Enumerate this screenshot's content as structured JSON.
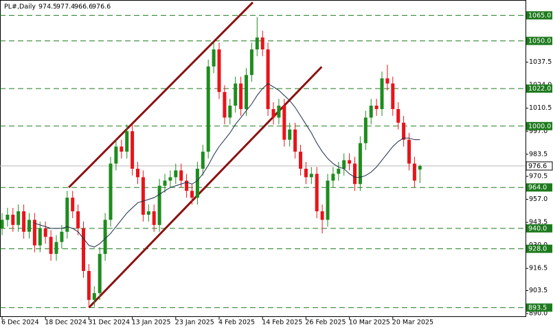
{
  "chart_data": {
    "type": "candlestick",
    "title": "PL#,Daily",
    "categories": [
      "6 Dec 2024",
      null,
      null,
      null,
      null,
      null,
      null,
      null,
      "18 Dec 2024",
      null,
      null,
      null,
      null,
      null,
      null,
      null,
      "31 Dec 2024",
      null,
      null,
      null,
      null,
      null,
      null,
      null,
      "13 Jan 2025",
      null,
      null,
      null,
      null,
      null,
      null,
      null,
      "23 Jan 2025",
      null,
      null,
      null,
      null,
      null,
      null,
      null,
      "4 Feb 2025",
      null,
      null,
      null,
      null,
      null,
      null,
      null,
      "14 Feb 2025",
      null,
      null,
      null,
      null,
      null,
      null,
      null,
      "26 Feb 2025",
      null,
      null,
      null,
      null,
      null,
      null,
      null,
      "10 Mar 2025",
      null,
      null,
      null,
      null,
      null,
      null,
      null,
      "20 Mar 2025",
      null,
      null,
      null,
      null,
      null
    ],
    "open": [
      940,
      945,
      948,
      942,
      950,
      938,
      945,
      930,
      940,
      935,
      925,
      932,
      938,
      958,
      950,
      940,
      915,
      898,
      902,
      925,
      945,
      978,
      988,
      985,
      997,
      975,
      970,
      948,
      950,
      942,
      965,
      968,
      970,
      974,
      968,
      962,
      958,
      975,
      985,
      1035,
      1045,
      1020,
      1005,
      1012,
      1025,
      1010,
      1030,
      1045,
      1052,
      1045,
      1010,
      1005,
      1012,
      992,
      998,
      985,
      975,
      970,
      972,
      950,
      945,
      968,
      972,
      975,
      980,
      978,
      966,
      990,
      1005,
      1012,
      1010,
      1028,
      1025,
      1010,
      1002,
      992,
      978,
      974.5
    ],
    "high": [
      949,
      952,
      952,
      954,
      954,
      949,
      949,
      944,
      944,
      939,
      936,
      942,
      962,
      962,
      954,
      944,
      919,
      906,
      929,
      949,
      982,
      992,
      992,
      1001,
      1001,
      979,
      974,
      954,
      954,
      969,
      972,
      974,
      978,
      978,
      972,
      966,
      979,
      989,
      1039,
      1049,
      1049,
      1024,
      1016,
      1029,
      1029,
      1034,
      1049,
      1064,
      1056,
      1049,
      1014,
      1016,
      1016,
      1002,
      1002,
      989,
      979,
      976,
      976,
      954,
      972,
      976,
      979,
      984,
      984,
      982,
      994,
      1009,
      1016,
      1016,
      1032,
      1036,
      1029,
      1014,
      1006,
      996,
      982,
      977.4
    ],
    "low": [
      936,
      941,
      938,
      938,
      934,
      934,
      926,
      926,
      931,
      921,
      921,
      928,
      934,
      946,
      936,
      911,
      893.5,
      894,
      898,
      921,
      941,
      974,
      981,
      981,
      971,
      966,
      944,
      944,
      938,
      938,
      961,
      964,
      966,
      964,
      958,
      954,
      954,
      971,
      981,
      1031,
      1016,
      1001,
      1001,
      1008,
      1006,
      1006,
      1026,
      1041,
      1041,
      1006,
      1001,
      1001,
      988,
      988,
      981,
      971,
      966,
      966,
      946,
      937,
      941,
      964,
      968,
      971,
      974,
      962,
      962,
      986,
      1001,
      1006,
      1006,
      1021,
      1006,
      998,
      988,
      974,
      964,
      966.6
    ],
    "close": [
      945,
      948,
      942,
      950,
      938,
      945,
      930,
      940,
      935,
      925,
      932,
      938,
      958,
      950,
      940,
      915,
      898,
      902,
      925,
      945,
      978,
      988,
      985,
      997,
      975,
      970,
      948,
      950,
      942,
      965,
      968,
      970,
      974,
      968,
      962,
      958,
      975,
      985,
      1035,
      1045,
      1020,
      1005,
      1012,
      1025,
      1010,
      1030,
      1045,
      1052,
      1045,
      1010,
      1005,
      1012,
      992,
      998,
      985,
      975,
      970,
      972,
      950,
      945,
      968,
      972,
      975,
      980,
      978,
      966,
      990,
      1005,
      1012,
      1010,
      1028,
      1025,
      1010,
      1002,
      992,
      978,
      968,
      976.6
    ],
    "up_color": "#1e8c1e",
    "down_color": "#e8141a",
    "ylim": [
      888,
      1074
    ],
    "yticks": [
      {
        "value": 890,
        "label": "890.0"
      },
      {
        "value": 903.5,
        "label": "903.5"
      },
      {
        "value": 916.5,
        "label": "916.5"
      },
      {
        "value": 930,
        "label": "930.0"
      },
      {
        "value": 943.5,
        "label": "943.5"
      },
      {
        "value": 957,
        "label": "957.0"
      },
      {
        "value": 970.5,
        "label": "970.5"
      },
      {
        "value": 983.5,
        "label": "983.5"
      },
      {
        "value": 997,
        "label": "997.0"
      },
      {
        "value": 1010.5,
        "label": "1010.5"
      },
      {
        "value": 1024,
        "label": "1024.0"
      },
      {
        "value": 1037.5,
        "label": "1037.5"
      }
    ],
    "overlay": {
      "color": "#1c2a4a",
      "values": [
        null,
        null,
        null,
        null,
        null,
        null,
        943,
        942,
        941,
        940,
        940,
        940,
        941,
        940,
        938,
        934,
        930,
        929,
        931,
        934,
        937,
        941,
        945,
        949,
        952,
        955,
        956,
        957,
        958,
        960,
        962,
        964,
        965,
        966,
        967,
        966,
        968,
        972,
        977,
        983,
        988,
        992,
        996,
        1001,
        1005,
        1009,
        1013,
        1018,
        1022,
        1025,
        1023,
        1021,
        1018,
        1015,
        1011,
        1006,
        1001,
        996,
        990,
        985,
        981,
        978,
        976,
        975,
        972,
        970,
        970,
        971,
        973,
        976,
        980,
        984,
        988,
        991,
        993,
        993,
        992,
        992
      ]
    },
    "levels": [
      {
        "value": 1065,
        "label": "1065.0"
      },
      {
        "value": 1050,
        "label": "1050.0"
      },
      {
        "value": 1022,
        "label": "1022.0"
      },
      {
        "value": 1000,
        "label": "1000.0"
      },
      {
        "value": 964,
        "label": "964.0"
      },
      {
        "value": 940,
        "label": "940.0"
      },
      {
        "value": 928,
        "label": "928.0"
      },
      {
        "value": 893.5,
        "label": "893.5"
      }
    ],
    "level_color": "#1e7a1e",
    "current_price_color": "#b8b8b8",
    "trendlines": [
      {
        "x0": 12.3,
        "y0": 964,
        "x1": 46.2,
        "y1": 1072.6
      },
      {
        "x0": 16,
        "y0": 893.5,
        "x1": 58.9,
        "y1": 1034.8
      }
    ],
    "trendline_color": "#8b1010"
  }
}
